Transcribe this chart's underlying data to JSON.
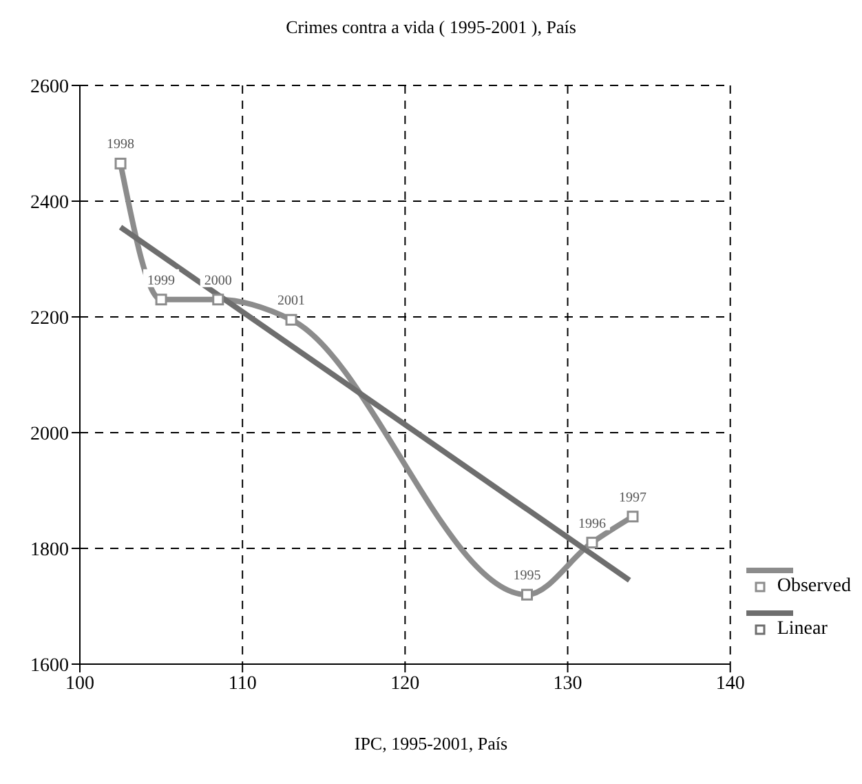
{
  "chart_data": {
    "type": "line",
    "title": "Crimes contra a vida ( 1995-2001 ), País",
    "xlabel": "IPC, 1995-2001, País",
    "series": [
      {
        "name": "Observed",
        "color": "#8c8c8c",
        "marker": "square",
        "x": [
          102.5,
          105,
          108.5,
          113,
          127.5,
          131.5,
          134
        ],
        "values": [
          2465,
          2230,
          2230,
          2195,
          1720,
          1810,
          1855
        ]
      },
      {
        "name": "Linear",
        "color": "#6e6e6e",
        "marker": "none",
        "x": [
          102.5,
          133.8
        ],
        "values": [
          2355,
          1745
        ]
      }
    ],
    "annotations": [
      {
        "text": "1998",
        "x": 102.5,
        "y": 2465
      },
      {
        "text": "1999",
        "x": 105,
        "y": 2230
      },
      {
        "text": "2000",
        "x": 108.5,
        "y": 2230
      },
      {
        "text": "2001",
        "x": 113,
        "y": 2195
      },
      {
        "text": "1995",
        "x": 127.5,
        "y": 1720
      },
      {
        "text": "1996",
        "x": 131.5,
        "y": 1810
      },
      {
        "text": "1997",
        "x": 134,
        "y": 1855
      }
    ],
    "xlim": [
      100,
      140
    ],
    "xticks": [
      100,
      110,
      120,
      130,
      140
    ],
    "ylim": [
      1600,
      2600
    ],
    "yticks": [
      1600,
      1800,
      2000,
      2200,
      2400,
      2600
    ],
    "grid": true,
    "line_style": "solid",
    "legend": "right"
  }
}
